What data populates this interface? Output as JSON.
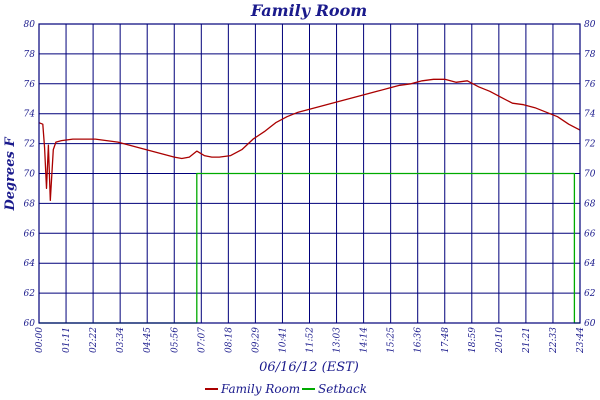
{
  "chart_data": {
    "type": "line",
    "title": "Family Room",
    "xlabel": "06/16/12 (EST)",
    "ylabel": "Degrees F",
    "ylim": [
      60,
      80
    ],
    "yticks": [
      60,
      62,
      64,
      66,
      68,
      70,
      72,
      74,
      76,
      78,
      80
    ],
    "xlim": [
      0,
      1440
    ],
    "x_units": "minutes of day",
    "xtick_labels": [
      "00:00",
      "01:11",
      "02:22",
      "03:34",
      "04:45",
      "05:56",
      "07:07",
      "08:18",
      "09:29",
      "10:41",
      "11:52",
      "13:03",
      "14:14",
      "15:25",
      "16:36",
      "17:48",
      "18:59",
      "20:10",
      "21:21",
      "22:33",
      "23:44"
    ],
    "grid": true,
    "legend_position": "bottom",
    "series": [
      {
        "name": "Family Room",
        "color": "#aa0000",
        "x": [
          0,
          10,
          15,
          20,
          25,
          30,
          38,
          45,
          60,
          90,
          120,
          150,
          180,
          210,
          240,
          270,
          300,
          330,
          360,
          380,
          400,
          420,
          440,
          460,
          480,
          510,
          540,
          570,
          600,
          630,
          660,
          690,
          720,
          750,
          780,
          810,
          840,
          870,
          900,
          930,
          960,
          990,
          1020,
          1050,
          1080,
          1110,
          1140,
          1170,
          1200,
          1230,
          1260,
          1290,
          1320,
          1350,
          1380,
          1410,
          1440
        ],
        "values": [
          73.4,
          73.3,
          71.7,
          69.0,
          71.9,
          68.2,
          71.6,
          72.1,
          72.2,
          72.3,
          72.3,
          72.3,
          72.2,
          72.1,
          71.9,
          71.7,
          71.5,
          71.3,
          71.1,
          71.0,
          71.1,
          71.5,
          71.2,
          71.1,
          71.1,
          71.2,
          71.6,
          72.3,
          72.8,
          73.4,
          73.8,
          74.1,
          74.3,
          74.5,
          74.7,
          74.9,
          75.1,
          75.3,
          75.5,
          75.7,
          75.9,
          76.0,
          76.2,
          76.3,
          76.3,
          76.1,
          76.2,
          75.8,
          75.5,
          75.1,
          74.7,
          74.6,
          74.4,
          74.1,
          73.8,
          73.3,
          72.9
        ]
      },
      {
        "name": "Setback",
        "color": "#00aa00",
        "x": [
          0,
          420,
          420,
          1425,
          1425,
          1440
        ],
        "values": [
          60,
          60,
          70,
          70,
          60,
          60
        ]
      }
    ]
  }
}
